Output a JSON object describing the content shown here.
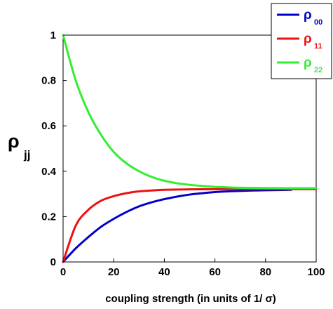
{
  "chart_data": {
    "type": "line",
    "xlabel": "coupling strength (in units of 1/ σ)",
    "ylabel": {
      "main": "ρ",
      "sub": "jj"
    },
    "xlim": [
      0,
      100
    ],
    "ylim": [
      0,
      1
    ],
    "xticks": [
      "0",
      "20",
      "40",
      "60",
      "80",
      "100"
    ],
    "yticks": [
      "0",
      "0.2",
      "0.4",
      "0.6",
      "0.8",
      "1"
    ],
    "grid": false,
    "legend_position": "top-right",
    "series": [
      {
        "name": {
          "main": "ρ",
          "sub": "00"
        },
        "color": "#0000cc",
        "x": [
          0,
          5,
          10,
          15,
          20,
          25,
          30,
          35,
          40,
          45,
          50,
          55,
          60,
          65,
          70,
          75,
          80,
          85,
          90
        ],
        "y": [
          0,
          0.06,
          0.11,
          0.155,
          0.19,
          0.22,
          0.245,
          0.263,
          0.277,
          0.288,
          0.297,
          0.303,
          0.308,
          0.311,
          0.313,
          0.315,
          0.316,
          0.317,
          0.318
        ]
      },
      {
        "name": {
          "main": "ρ",
          "sub": "11"
        },
        "color": "#ee1111",
        "x": [
          0,
          5,
          10,
          15,
          20,
          25,
          30,
          35,
          40,
          50,
          60,
          70,
          80,
          90,
          100
        ],
        "y": [
          0,
          0.16,
          0.23,
          0.27,
          0.29,
          0.303,
          0.311,
          0.315,
          0.318,
          0.32,
          0.321,
          0.321,
          0.321,
          0.321,
          0.321
        ]
      },
      {
        "name": {
          "main": "ρ",
          "sub": "22"
        },
        "color": "#33ee33",
        "x": [
          0,
          5,
          10,
          15,
          20,
          25,
          30,
          35,
          40,
          45,
          50,
          55,
          60,
          65,
          70,
          80,
          90,
          100
        ],
        "y": [
          1,
          0.8,
          0.66,
          0.56,
          0.485,
          0.435,
          0.4,
          0.375,
          0.358,
          0.347,
          0.34,
          0.335,
          0.331,
          0.329,
          0.327,
          0.326,
          0.325,
          0.325
        ]
      }
    ]
  }
}
